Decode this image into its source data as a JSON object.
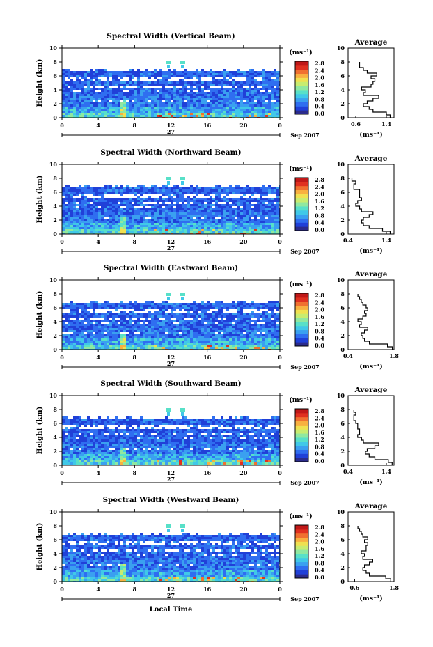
{
  "figure": {
    "xlabel": "Local Time",
    "day_label": "27",
    "month_label": "Sep 2007",
    "ylabel": "Height (km)",
    "unit_label": "(ms⁻¹)",
    "avg_title": "Average",
    "avg_xlabel": "(ms⁻¹)",
    "colorbar_ticks": [
      "2.8",
      "2.4",
      "2.0",
      "1.6",
      "1.2",
      "0.8",
      "0.4",
      "0.0"
    ],
    "colormap": [
      "#2b2b8c",
      "#2040d8",
      "#2f6ef0",
      "#3aa0f0",
      "#40c8e8",
      "#58e0c8",
      "#90e8a0",
      "#c8ec70",
      "#f0e050",
      "#f8b040",
      "#f07030",
      "#e03020",
      "#c01818"
    ]
  },
  "chart_data": [
    {
      "type": "heatmap",
      "title": "Spectral Width (Vertical Beam)",
      "xlabel": "Local Time",
      "ylabel": "Height (km)",
      "x_ticks": [
        "0",
        "4",
        "8",
        "12",
        "16",
        "20",
        "0"
      ],
      "y_ticks": [
        "0",
        "2",
        "4",
        "6",
        "8",
        "10"
      ],
      "xlim": [
        0,
        24
      ],
      "ylim": [
        0,
        10
      ],
      "colorbar": {
        "label": "(ms⁻¹)",
        "range": [
          0,
          3.0
        ]
      },
      "profile": {
        "title": "Average",
        "xlabel": "(ms⁻¹)",
        "x_ticks": [
          "0.6",
          "1.4"
        ],
        "xlim": [
          0.4,
          1.6
        ],
        "heights": [
          0.2,
          0.6,
          1.0,
          1.4,
          1.8,
          2.2,
          2.6,
          3.0,
          3.4,
          3.8,
          4.2,
          4.6,
          5.0,
          5.4,
          5.8,
          6.2,
          6.6,
          7.0,
          7.4,
          7.8
        ],
        "values": [
          1.5,
          1.4,
          1.05,
          0.95,
          0.8,
          0.9,
          1.05,
          1.2,
          0.8,
          0.85,
          0.75,
          1.0,
          1.05,
          1.1,
          1.0,
          1.15,
          0.9,
          0.8,
          0.7,
          0.7
        ]
      }
    },
    {
      "type": "heatmap",
      "title": "Spectral Width (Northward Beam)",
      "xlabel": "Local Time",
      "ylabel": "Height (km)",
      "x_ticks": [
        "0",
        "4",
        "8",
        "12",
        "16",
        "20",
        "0"
      ],
      "y_ticks": [
        "0",
        "2",
        "4",
        "6",
        "8",
        "10"
      ],
      "xlim": [
        0,
        24
      ],
      "ylim": [
        0,
        10
      ],
      "colorbar": {
        "label": "(ms⁻¹)",
        "range": [
          0,
          3.0
        ]
      },
      "profile": {
        "title": "Average",
        "xlabel": "(ms⁻¹)",
        "x_ticks": [
          "0.4",
          "1.4"
        ],
        "xlim": [
          0.4,
          1.6
        ],
        "heights": [
          0.2,
          0.6,
          1.0,
          1.4,
          1.8,
          2.2,
          2.6,
          3.0,
          3.4,
          3.8,
          4.2,
          4.6,
          5.0,
          5.4,
          5.8,
          6.2,
          6.6,
          7.0,
          7.4,
          7.8
        ],
        "values": [
          1.5,
          1.3,
          0.95,
          0.8,
          0.75,
          0.8,
          0.95,
          1.05,
          0.75,
          0.7,
          0.6,
          0.65,
          0.75,
          0.7,
          0.7,
          0.7,
          0.55,
          0.55,
          0.6,
          0.5
        ]
      }
    },
    {
      "type": "heatmap",
      "title": "Spectral Width (Eastward Beam)",
      "xlabel": "Local Time",
      "ylabel": "Height (km)",
      "x_ticks": [
        "0",
        "4",
        "8",
        "12",
        "16",
        "20",
        "0"
      ],
      "y_ticks": [
        "0",
        "2",
        "4",
        "6",
        "8",
        "10"
      ],
      "xlim": [
        0,
        24
      ],
      "ylim": [
        0,
        10
      ],
      "colorbar": {
        "label": "(ms⁻¹)",
        "range": [
          0,
          3.0
        ]
      },
      "profile": {
        "title": "Average",
        "xlabel": "(ms⁻¹)",
        "x_ticks": [
          "0.4",
          "1.8"
        ],
        "xlim": [
          0.4,
          1.8
        ],
        "heights": [
          0.2,
          0.6,
          1.0,
          1.4,
          1.8,
          2.2,
          2.6,
          3.0,
          3.4,
          3.8,
          4.2,
          4.6,
          5.0,
          5.4,
          5.8,
          6.2,
          6.6,
          7.0,
          7.4,
          7.8
        ],
        "values": [
          1.75,
          1.6,
          1.05,
          0.9,
          0.85,
          0.8,
          0.9,
          1.0,
          0.75,
          0.8,
          0.7,
          0.85,
          0.95,
          0.9,
          1.0,
          0.95,
          0.85,
          0.8,
          0.75,
          0.7
        ]
      }
    },
    {
      "type": "heatmap",
      "title": "Spectral Width (Southward Beam)",
      "xlabel": "Local Time",
      "ylabel": "Height (km)",
      "x_ticks": [
        "0",
        "4",
        "8",
        "12",
        "16",
        "20",
        "0"
      ],
      "y_ticks": [
        "0",
        "2",
        "4",
        "6",
        "8",
        "10"
      ],
      "xlim": [
        0,
        24
      ],
      "ylim": [
        0,
        10
      ],
      "colorbar": {
        "label": "(ms⁻¹)",
        "range": [
          0,
          3.0
        ]
      },
      "profile": {
        "title": "Average",
        "xlabel": "(ms⁻¹)",
        "x_ticks": [
          "0.4",
          "1.4"
        ],
        "xlim": [
          0.4,
          1.6
        ],
        "heights": [
          0.2,
          0.6,
          1.0,
          1.4,
          1.8,
          2.2,
          2.6,
          3.0,
          3.4,
          3.8,
          4.2,
          4.6,
          5.0,
          5.4,
          5.8,
          6.2,
          6.6,
          7.0,
          7.4,
          7.8
        ],
        "values": [
          1.55,
          1.45,
          1.1,
          0.95,
          0.85,
          0.9,
          1.1,
          1.2,
          0.8,
          0.75,
          0.65,
          0.7,
          0.7,
          0.65,
          0.65,
          0.6,
          0.55,
          0.55,
          0.6,
          0.55
        ]
      }
    },
    {
      "type": "heatmap",
      "title": "Spectral Width (Westward Beam)",
      "xlabel": "Local Time",
      "ylabel": "Height (km)",
      "x_ticks": [
        "0",
        "4",
        "8",
        "12",
        "16",
        "20",
        "0"
      ],
      "y_ticks": [
        "0",
        "2",
        "4",
        "6",
        "8",
        "10"
      ],
      "xlim": [
        0,
        24
      ],
      "ylim": [
        0,
        10
      ],
      "colorbar": {
        "label": "(ms⁻¹)",
        "range": [
          0,
          3.0
        ]
      },
      "profile": {
        "title": "Average",
        "xlabel": "(ms⁻¹)",
        "x_ticks": [
          "0.6",
          "1.8"
        ],
        "xlim": [
          0.4,
          1.8
        ],
        "heights": [
          0.2,
          0.6,
          1.0,
          1.4,
          1.8,
          2.2,
          2.6,
          3.0,
          3.4,
          3.8,
          4.2,
          4.6,
          5.0,
          5.4,
          5.8,
          6.2,
          6.6,
          7.0,
          7.4,
          7.8
        ],
        "values": [
          1.7,
          1.55,
          1.05,
          0.95,
          0.85,
          0.9,
          1.05,
          1.15,
          0.85,
          0.9,
          0.8,
          0.95,
          0.95,
          1.0,
          0.9,
          1.0,
          0.85,
          0.8,
          0.75,
          0.7
        ]
      }
    }
  ]
}
